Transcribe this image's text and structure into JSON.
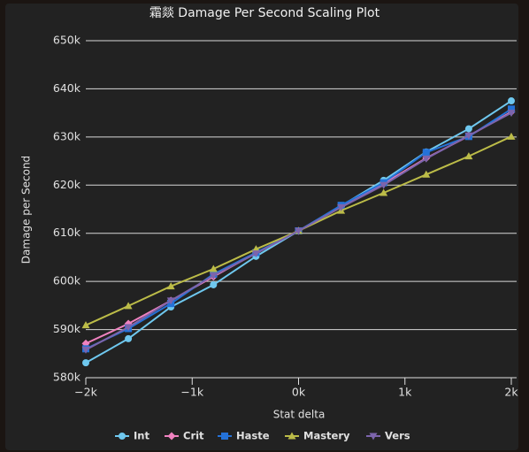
{
  "chart_data": {
    "type": "line",
    "title": "霜燚 Damage Per Second Scaling Plot",
    "x_label": "Stat delta",
    "y_label": "Damage per Second",
    "x": [
      -2000,
      -1600,
      -1200,
      -800,
      -400,
      0,
      400,
      800,
      1200,
      1600,
      2000
    ],
    "xlim": [
      -2000,
      2000
    ],
    "xticks": [
      {
        "value": -2000,
        "label": "−2k"
      },
      {
        "value": -1000,
        "label": "−1k"
      },
      {
        "value": 0,
        "label": "0k"
      },
      {
        "value": 1000,
        "label": "1k"
      },
      {
        "value": 2000,
        "label": "2k"
      }
    ],
    "ylim": [
      580000,
      650000
    ],
    "yticks": [
      {
        "value": 580000,
        "label": "580k"
      },
      {
        "value": 590000,
        "label": "590k"
      },
      {
        "value": 600000,
        "label": "600k"
      },
      {
        "value": 610000,
        "label": "610k"
      },
      {
        "value": 620000,
        "label": "620k"
      },
      {
        "value": 630000,
        "label": "630k"
      },
      {
        "value": 640000,
        "label": "640k"
      },
      {
        "value": 650000,
        "label": "650k"
      }
    ],
    "grid": true,
    "legend": "bottom",
    "series": [
      {
        "name": "Int",
        "color": "#6fc8ef",
        "marker": "circle",
        "values": [
          583100,
          588100,
          594700,
          599300,
          605200,
          610500,
          615700,
          621000,
          626900,
          631700,
          637500
        ]
      },
      {
        "name": "Crit",
        "color": "#f082c0",
        "marker": "diamond",
        "values": [
          587100,
          591200,
          596000,
          601000,
          605900,
          610500,
          615500,
          620300,
          625600,
          630200,
          635200
        ]
      },
      {
        "name": "Haste",
        "color": "#2472d8",
        "marker": "square",
        "values": [
          586000,
          590200,
          595400,
          601500,
          606000,
          610500,
          615800,
          620500,
          626800,
          630100,
          635800
        ]
      },
      {
        "name": "Mastery",
        "color": "#bcbc48",
        "marker": "triangle",
        "values": [
          590900,
          594900,
          599000,
          602600,
          606700,
          610500,
          614700,
          618400,
          622200,
          626000,
          630100
        ]
      },
      {
        "name": "Vers",
        "color": "#7c64ac",
        "marker": "triangle-down",
        "values": [
          585800,
          590500,
          596000,
          601200,
          605800,
          610500,
          615400,
          620000,
          625500,
          630300,
          635000
        ]
      }
    ]
  }
}
